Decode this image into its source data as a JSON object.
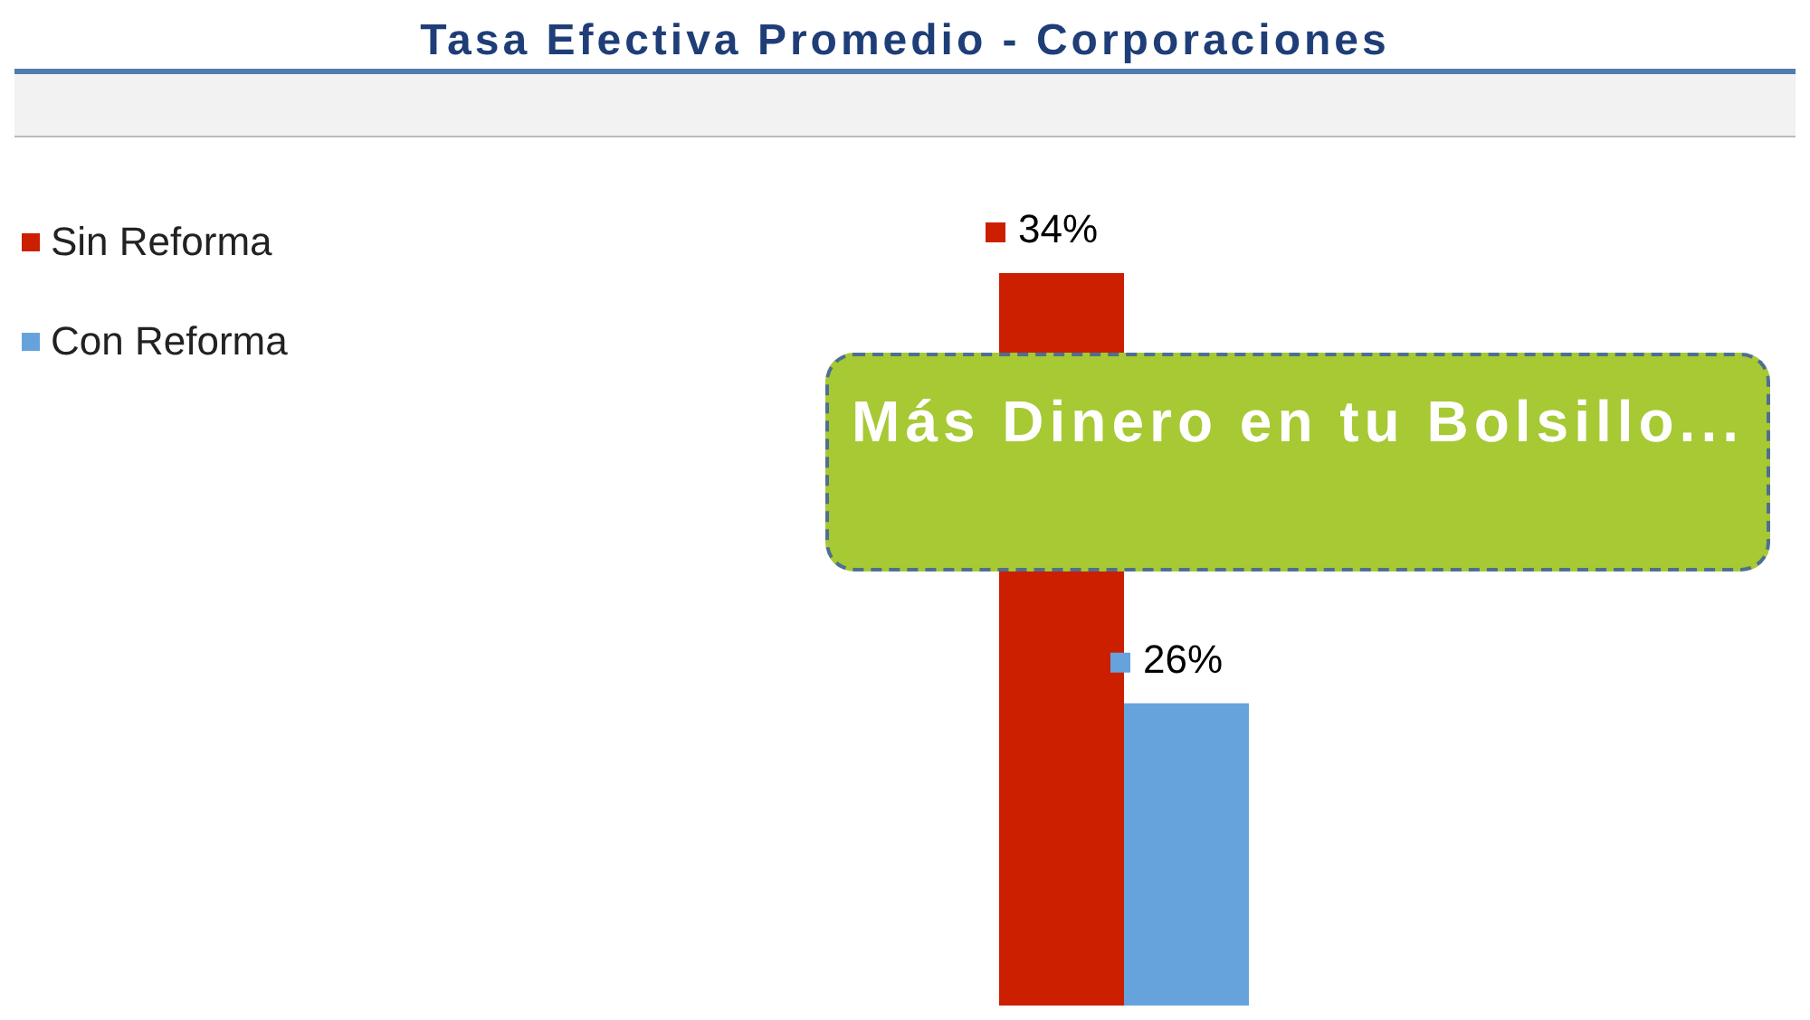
{
  "chart_data": {
    "type": "bar",
    "title": "Tasa Efectiva Promedio - Corporaciones",
    "categories": [
      null
    ],
    "series": [
      {
        "name": "Sin Reforma",
        "color": "#cc1f00",
        "values": [
          34
        ],
        "value_labels": [
          "34%"
        ]
      },
      {
        "name": "Con Reforma",
        "color": "#66a3dc",
        "values": [
          26
        ],
        "value_labels": [
          "26%"
        ]
      }
    ],
    "legend": "top left",
    "annotations": [
      "Más Dinero en tu Bolsillo..."
    ]
  }
}
